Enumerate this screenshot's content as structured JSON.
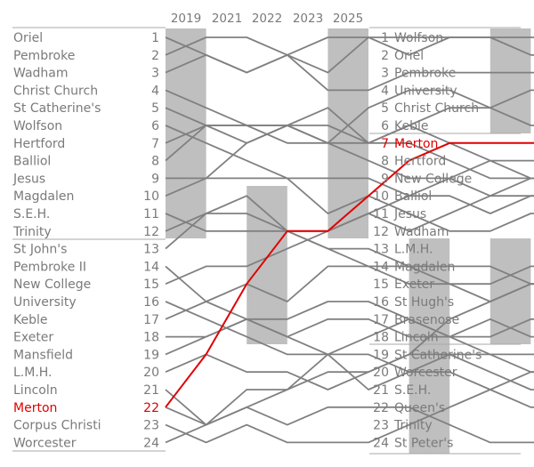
{
  "chart_data": {
    "type": "line",
    "title": "",
    "years": [
      "2019",
      "2021",
      "2022",
      "2023",
      "2025"
    ],
    "ranks": [
      "1",
      "2",
      "3",
      "4",
      "5",
      "6",
      "7",
      "8",
      "9",
      "10",
      "11",
      "12",
      "13",
      "14",
      "15",
      "16",
      "17",
      "18",
      "19",
      "20",
      "21",
      "22",
      "23",
      "24"
    ],
    "start_order": [
      "Oriel",
      "Pembroke",
      "Wadham",
      "Christ Church",
      "St Catherine's",
      "Wolfson",
      "Hertford",
      "Balliol",
      "Jesus",
      "Magdalen",
      "S.E.H.",
      "Trinity",
      "St John's",
      "Pembroke II",
      "New College",
      "University",
      "Keble",
      "Exeter",
      "Mansfield",
      "L.M.H.",
      "Lincoln",
      "Merton",
      "Corpus Christi",
      "Worcester"
    ],
    "end_order": [
      "Wolfson",
      "Oriel",
      "Pembroke",
      "University",
      "Christ Church",
      "Keble",
      "Merton",
      "Hertford",
      "New College",
      "Balliol",
      "Jesus",
      "Wadham",
      "L.M.H.",
      "Magdalen",
      "Exeter",
      "St Hugh's",
      "Brasenose",
      "Lincoln",
      "St Catherine's",
      "Worcester",
      "S.E.H.",
      "Queen's",
      "Trinity",
      "St Peter's"
    ],
    "highlight": {
      "name": "Merton",
      "color": "#e00000",
      "start_rank": 22,
      "end_rank": 7,
      "path": [
        22,
        19,
        15,
        12,
        12,
        10,
        8,
        7,
        7
      ]
    },
    "line_color": "#808080",
    "band_color": "#bfbfbf",
    "division_size": 12
  }
}
